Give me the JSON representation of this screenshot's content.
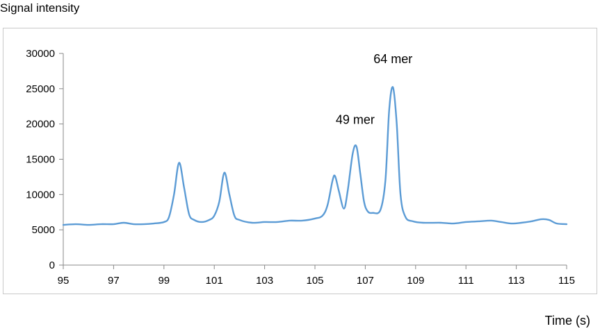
{
  "chart_data": {
    "type": "line",
    "ylabel": "Signal intensity",
    "xlabel": "Time (s)",
    "xlim": [
      95,
      115
    ],
    "ylim": [
      0,
      30000
    ],
    "xticks": [
      "95",
      "97",
      "99",
      "101",
      "103",
      "105",
      "107",
      "109",
      "111",
      "113",
      "115"
    ],
    "yticks": [
      "0",
      "5000",
      "10000",
      "15000",
      "20000",
      "25000",
      "30000"
    ],
    "grid": false,
    "line_color": "#5b9bd5",
    "annotations": [
      {
        "text": "49 mer",
        "x": 106.6,
        "y": 20000
      },
      {
        "text": "64 mer",
        "x": 108.1,
        "y": 28600
      }
    ],
    "series": [
      {
        "x": [
          95.0,
          95.5,
          96.0,
          96.5,
          97.0,
          97.4,
          97.8,
          98.2,
          98.6,
          99.0,
          99.2,
          99.4,
          99.6,
          99.8,
          100.0,
          100.2,
          100.5,
          100.8,
          101.0,
          101.2,
          101.4,
          101.6,
          101.8,
          102.0,
          102.5,
          103.0,
          103.5,
          104.0,
          104.5,
          105.0,
          105.3,
          105.5,
          105.7,
          105.8,
          105.95,
          106.15,
          106.3,
          106.5,
          106.65,
          106.8,
          106.95,
          107.1,
          107.3,
          107.6,
          107.8,
          107.95,
          108.1,
          108.25,
          108.4,
          108.6,
          108.9,
          109.3,
          110.0,
          110.5,
          111.0,
          111.5,
          112.0,
          112.4,
          112.8,
          113.2,
          113.6,
          114.0,
          114.3,
          114.6,
          115.0
        ],
        "y": [
          5700,
          5800,
          5700,
          5800,
          5800,
          6000,
          5800,
          5800,
          5900,
          6100,
          6800,
          10000,
          14500,
          11000,
          7200,
          6400,
          6100,
          6400,
          7000,
          9000,
          13100,
          10000,
          7000,
          6400,
          6000,
          6100,
          6100,
          6300,
          6300,
          6600,
          7000,
          8500,
          12000,
          12600,
          10500,
          8000,
          10500,
          15800,
          16800,
          13000,
          9000,
          7600,
          7400,
          7800,
          12000,
          22000,
          25200,
          20000,
          10000,
          6800,
          6200,
          6000,
          6000,
          5900,
          6100,
          6200,
          6300,
          6100,
          5900,
          6000,
          6200,
          6500,
          6400,
          5900,
          5800
        ]
      }
    ]
  }
}
